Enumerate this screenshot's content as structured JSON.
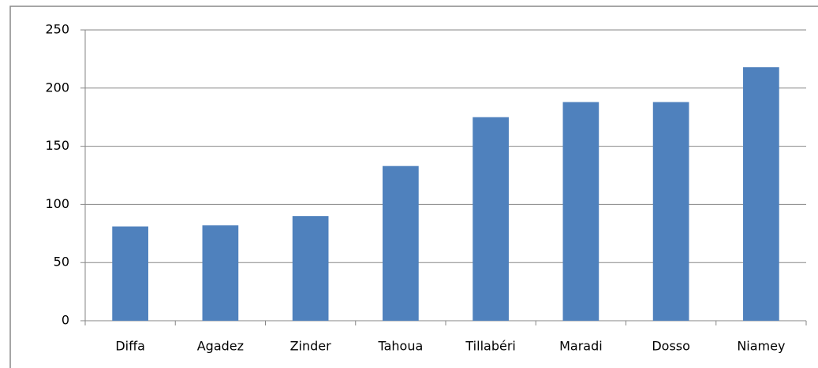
{
  "chart_data": {
    "type": "bar",
    "categories": [
      "Diffa",
      "Agadez",
      "Zinder",
      "Tahoua",
      "Tillabéri",
      "Maradi",
      "Dosso",
      "Niamey"
    ],
    "values": [
      81,
      82,
      90,
      133,
      175,
      188,
      188,
      218
    ],
    "color": "#4f81bd",
    "ylim": [
      0,
      250
    ],
    "yticks": [
      0,
      50,
      100,
      150,
      200,
      250
    ],
    "grid": true
  }
}
